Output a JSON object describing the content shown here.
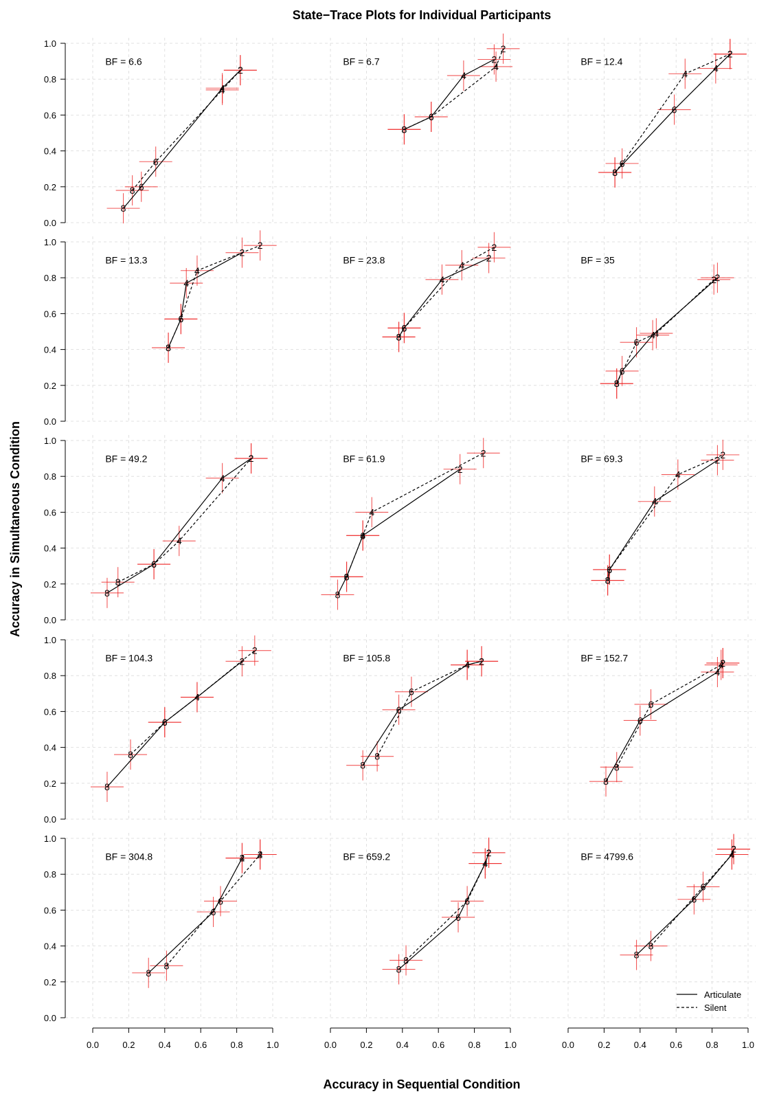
{
  "figure": {
    "title": "State−Trace Plots for Individual Participants",
    "xlabel": "Accuracy in Sequential Condition",
    "ylabel": "Accuracy in Simultaneous Condition",
    "legend": {
      "position": "bottom-right",
      "articulate": "Articulate",
      "silent": "Silent"
    },
    "colors": {
      "error_bar": "#ee2222",
      "line": "#000000",
      "grid": "#d9d9d9"
    }
  },
  "chart_data": {
    "type": "line",
    "grid": true,
    "xlim": [
      0,
      1
    ],
    "ylim": [
      0,
      1
    ],
    "x_ticks": [
      "0.0",
      "0.2",
      "0.4",
      "0.6",
      "0.8",
      "1.0"
    ],
    "y_ticks": [
      "0.0",
      "0.2",
      "0.4",
      "0.6",
      "0.8",
      "1.0"
    ],
    "point_labels": [
      "8",
      "6",
      "4",
      "2"
    ],
    "panels": [
      {
        "bf": "BF = 6.6",
        "articulate": [
          [
            0.17,
            0.08
          ],
          [
            0.27,
            0.2
          ],
          [
            0.72,
            0.75
          ],
          [
            0.82,
            0.85
          ]
        ],
        "silent": [
          [
            0.22,
            0.18
          ],
          [
            0.35,
            0.34
          ],
          [
            0.72,
            0.74
          ],
          [
            0.82,
            0.85
          ]
        ]
      },
      {
        "bf": "BF = 6.7",
        "articulate": [
          [
            0.41,
            0.52
          ],
          [
            0.56,
            0.59
          ],
          [
            0.74,
            0.82
          ],
          [
            0.91,
            0.91
          ]
        ],
        "silent": [
          [
            0.41,
            0.52
          ],
          [
            0.56,
            0.59
          ],
          [
            0.92,
            0.87
          ],
          [
            0.96,
            0.97
          ]
        ]
      },
      {
        "bf": "BF = 12.4",
        "articulate": [
          [
            0.26,
            0.28
          ],
          [
            0.59,
            0.63
          ],
          [
            0.82,
            0.86
          ],
          [
            0.9,
            0.94
          ]
        ],
        "silent": [
          [
            0.26,
            0.28
          ],
          [
            0.3,
            0.33
          ],
          [
            0.65,
            0.83
          ],
          [
            0.9,
            0.94
          ]
        ]
      },
      {
        "bf": "BF = 13.3",
        "articulate": [
          [
            0.42,
            0.41
          ],
          [
            0.49,
            0.57
          ],
          [
            0.52,
            0.77
          ],
          [
            0.83,
            0.94
          ]
        ],
        "silent": [
          [
            0.42,
            0.41
          ],
          [
            0.49,
            0.57
          ],
          [
            0.58,
            0.84
          ],
          [
            0.93,
            0.98
          ]
        ]
      },
      {
        "bf": "BF = 23.8",
        "articulate": [
          [
            0.38,
            0.47
          ],
          [
            0.41,
            0.52
          ],
          [
            0.62,
            0.79
          ],
          [
            0.88,
            0.91
          ]
        ],
        "silent": [
          [
            0.38,
            0.47
          ],
          [
            0.41,
            0.52
          ],
          [
            0.73,
            0.87
          ],
          [
            0.91,
            0.97
          ]
        ]
      },
      {
        "bf": "BF = 35",
        "articulate": [
          [
            0.27,
            0.21
          ],
          [
            0.3,
            0.28
          ],
          [
            0.47,
            0.48
          ],
          [
            0.83,
            0.8
          ]
        ],
        "silent": [
          [
            0.27,
            0.21
          ],
          [
            0.38,
            0.44
          ],
          [
            0.49,
            0.49
          ],
          [
            0.81,
            0.79
          ]
        ]
      },
      {
        "bf": "BF = 49.2",
        "articulate": [
          [
            0.08,
            0.15
          ],
          [
            0.34,
            0.31
          ],
          [
            0.72,
            0.79
          ],
          [
            0.88,
            0.9
          ]
        ],
        "silent": [
          [
            0.14,
            0.21
          ],
          [
            0.34,
            0.31
          ],
          [
            0.48,
            0.44
          ],
          [
            0.88,
            0.9
          ]
        ]
      },
      {
        "bf": "BF = 61.9",
        "articulate": [
          [
            0.04,
            0.14
          ],
          [
            0.09,
            0.24
          ],
          [
            0.18,
            0.47
          ],
          [
            0.72,
            0.84
          ]
        ],
        "silent": [
          [
            0.09,
            0.24
          ],
          [
            0.18,
            0.47
          ],
          [
            0.23,
            0.6
          ],
          [
            0.85,
            0.93
          ]
        ]
      },
      {
        "bf": "BF = 69.3",
        "articulate": [
          [
            0.22,
            0.22
          ],
          [
            0.23,
            0.28
          ],
          [
            0.48,
            0.66
          ],
          [
            0.83,
            0.89
          ]
        ],
        "silent": [
          [
            0.22,
            0.22
          ],
          [
            0.23,
            0.28
          ],
          [
            0.61,
            0.81
          ],
          [
            0.86,
            0.92
          ]
        ]
      },
      {
        "bf": "BF = 104.3",
        "articulate": [
          [
            0.08,
            0.18
          ],
          [
            0.4,
            0.54
          ],
          [
            0.58,
            0.68
          ],
          [
            0.83,
            0.88
          ]
        ],
        "silent": [
          [
            0.21,
            0.36
          ],
          [
            0.4,
            0.54
          ],
          [
            0.58,
            0.68
          ],
          [
            0.9,
            0.94
          ]
        ]
      },
      {
        "bf": "BF = 105.8",
        "articulate": [
          [
            0.18,
            0.3
          ],
          [
            0.38,
            0.61
          ],
          [
            0.76,
            0.86
          ],
          [
            0.84,
            0.88
          ]
        ],
        "silent": [
          [
            0.26,
            0.35
          ],
          [
            0.45,
            0.71
          ],
          [
            0.76,
            0.86
          ],
          [
            0.84,
            0.88
          ]
        ]
      },
      {
        "bf": "BF = 152.7",
        "articulate": [
          [
            0.21,
            0.21
          ],
          [
            0.4,
            0.55
          ],
          [
            0.83,
            0.82
          ],
          [
            0.86,
            0.87
          ]
        ],
        "silent": [
          [
            0.27,
            0.29
          ],
          [
            0.46,
            0.64
          ],
          [
            0.85,
            0.86
          ],
          [
            0.86,
            0.87
          ]
        ]
      },
      {
        "bf": "BF = 304.8",
        "articulate": [
          [
            0.31,
            0.25
          ],
          [
            0.67,
            0.59
          ],
          [
            0.83,
            0.89
          ],
          [
            0.83,
            0.89
          ]
        ],
        "silent": [
          [
            0.41,
            0.29
          ],
          [
            0.71,
            0.65
          ],
          [
            0.93,
            0.91
          ],
          [
            0.93,
            0.91
          ]
        ]
      },
      {
        "bf": "BF = 659.2",
        "articulate": [
          [
            0.38,
            0.27
          ],
          [
            0.71,
            0.56
          ],
          [
            0.86,
            0.86
          ],
          [
            0.88,
            0.92
          ]
        ],
        "silent": [
          [
            0.42,
            0.32
          ],
          [
            0.76,
            0.65
          ],
          [
            0.86,
            0.86
          ],
          [
            0.88,
            0.92
          ]
        ]
      },
      {
        "bf": "BF = 4799.6",
        "articulate": [
          [
            0.38,
            0.35
          ],
          [
            0.7,
            0.66
          ],
          [
            0.91,
            0.91
          ],
          [
            0.92,
            0.94
          ]
        ],
        "silent": [
          [
            0.46,
            0.4
          ],
          [
            0.75,
            0.73
          ],
          [
            0.91,
            0.91
          ],
          [
            0.92,
            0.94
          ]
        ]
      }
    ]
  }
}
